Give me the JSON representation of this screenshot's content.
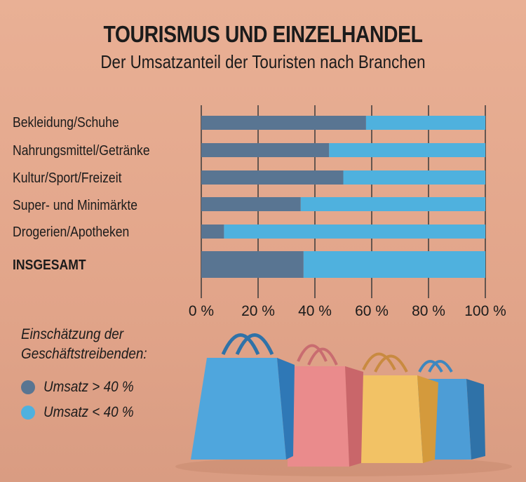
{
  "header": {
    "title": "TOURISMUS UND EINZELHANDEL",
    "subtitle": "Der Umsatzanteil der Touristen nach Branchen"
  },
  "legend": {
    "title_line1": "Einschätzung der",
    "title_line2": "Geschäftstreibenden:",
    "items": [
      {
        "label": "Umsatz > 40 %",
        "color": "#597592"
      },
      {
        "label": "Umsatz < 40 %",
        "color": "#4fb1de"
      }
    ]
  },
  "chart_data": {
    "type": "bar",
    "orientation": "horizontal",
    "stacked": true,
    "categories": [
      "Bekleidung/Schuhe",
      "Nahrungsmittel/Getränke",
      "Kultur/Sport/Freizeit",
      "Super- und Minimärkte",
      "Drogerien/Apotheken",
      "INSGESAMT"
    ],
    "series": [
      {
        "name": "Umsatz > 40 %",
        "color": "#597592",
        "values": [
          58,
          45,
          50,
          35,
          8,
          36
        ]
      },
      {
        "name": "Umsatz < 40 %",
        "color": "#4fb1de",
        "values": [
          42,
          55,
          50,
          65,
          92,
          64
        ]
      }
    ],
    "xlim": [
      0,
      100
    ],
    "x_ticks": [
      "0 %",
      "20 %",
      "40 %",
      "60 %",
      "80 %",
      "100 %"
    ],
    "grid": true,
    "legend_position": "bottom-left"
  }
}
